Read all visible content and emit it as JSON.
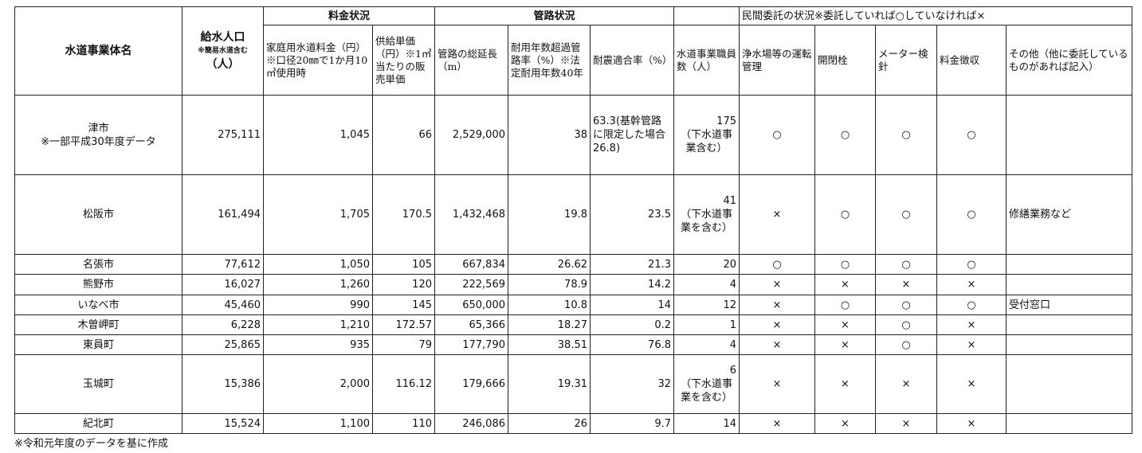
{
  "headers": {
    "entity_name": "水道事業体名",
    "population": "給水人口",
    "population_note": "※簡易水道含む",
    "population_unit": "（人）",
    "fee_group": "料金状況",
    "household_fee": "家庭用水道料金（円）※口径20㎜で1か月10㎥使用時",
    "unit_price": "供給単価（円）※1㎥当たりの販売単価",
    "pipe_group": "管路状況",
    "pipe_length": "管路の総延長（m）",
    "aged_ratio": "耐用年数超過管路率（%）※法定耐用年数40年",
    "quake_ratio": "耐震適合率（%）",
    "staff": "水道事業職員数（人）",
    "outsourcing_group": "民間委託の状況※委託していれば○していなければ×",
    "plant_operation": "浄水場等の運転管理",
    "valve": "開閉栓",
    "meter": "メーター検針",
    "billing": "料金徴収",
    "other": "その他（他に委託しているものがあれば記入）"
  },
  "rows": [
    {
      "name": [
        "津市",
        "※一部平成30年度データ"
      ],
      "population": "275,111",
      "fee": "1,045",
      "price": "66",
      "length": "2,529,000",
      "aged": "38",
      "quake": [
        "63.3(基幹管路に限定した場合26.8)"
      ],
      "staff": [
        "175",
        "（下水道事業含む）"
      ],
      "plant": "○",
      "valve": "○",
      "meter": "○",
      "billing": "○",
      "other": ""
    },
    {
      "name": [
        "松阪市"
      ],
      "population": "161,494",
      "fee": "1,705",
      "price": "170.5",
      "length": "1,432,468",
      "aged": "19.8",
      "quake": [
        "23.5"
      ],
      "staff": [
        "41",
        "（下水道事業を含む）"
      ],
      "plant": "×",
      "valve": "○",
      "meter": "○",
      "billing": "○",
      "other": "修繕業務など"
    },
    {
      "name": [
        "名張市"
      ],
      "population": "77,612",
      "fee": "1,050",
      "price": "105",
      "length": "667,834",
      "aged": "26.62",
      "quake": [
        "21.3"
      ],
      "staff": [
        "20"
      ],
      "plant": "○",
      "valve": "○",
      "meter": "○",
      "billing": "○",
      "other": ""
    },
    {
      "name": [
        "熊野市"
      ],
      "population": "16,027",
      "fee": "1,260",
      "price": "120",
      "length": "222,569",
      "aged": "78.9",
      "quake": [
        "14.2"
      ],
      "staff": [
        "4"
      ],
      "plant": "×",
      "valve": "×",
      "meter": "×",
      "billing": "×",
      "other": ""
    },
    {
      "name": [
        "いなべ市"
      ],
      "population": "45,460",
      "fee": "990",
      "price": "145",
      "length": "650,000",
      "aged": "10.8",
      "quake": [
        "14"
      ],
      "staff": [
        "12"
      ],
      "plant": "×",
      "valve": "○",
      "meter": "○",
      "billing": "○",
      "other": "受付窓口"
    },
    {
      "name": [
        "木曽岬町"
      ],
      "population": "6,228",
      "fee": "1,210",
      "price": "172.57",
      "length": "65,366",
      "aged": "18.27",
      "quake": [
        "0.2"
      ],
      "staff": [
        "1"
      ],
      "plant": "×",
      "valve": "×",
      "meter": "○",
      "billing": "×",
      "other": ""
    },
    {
      "name": [
        "東員町"
      ],
      "population": "25,865",
      "fee": "935",
      "price": "79",
      "length": "177,790",
      "aged": "38.51",
      "quake": [
        "76.8"
      ],
      "staff": [
        "4"
      ],
      "plant": "×",
      "valve": "×",
      "meter": "○",
      "billing": "×",
      "other": ""
    },
    {
      "name": [
        "玉城町"
      ],
      "population": "15,386",
      "fee": "2,000",
      "price": "116.12",
      "length": "179,666",
      "aged": "19.31",
      "quake": [
        "32"
      ],
      "staff": [
        "6",
        "（下水道事業を含む）"
      ],
      "plant": "×",
      "valve": "×",
      "meter": "×",
      "billing": "×",
      "other": ""
    },
    {
      "name": [
        "紀北町"
      ],
      "population": "15,524",
      "fee": "1,100",
      "price": "110",
      "length": "246,086",
      "aged": "26",
      "quake": [
        "9.7"
      ],
      "staff": [
        "14"
      ],
      "plant": "×",
      "valve": "×",
      "meter": "×",
      "billing": "×",
      "other": ""
    }
  ],
  "footnote": "※令和元年度のデータを基に作成"
}
